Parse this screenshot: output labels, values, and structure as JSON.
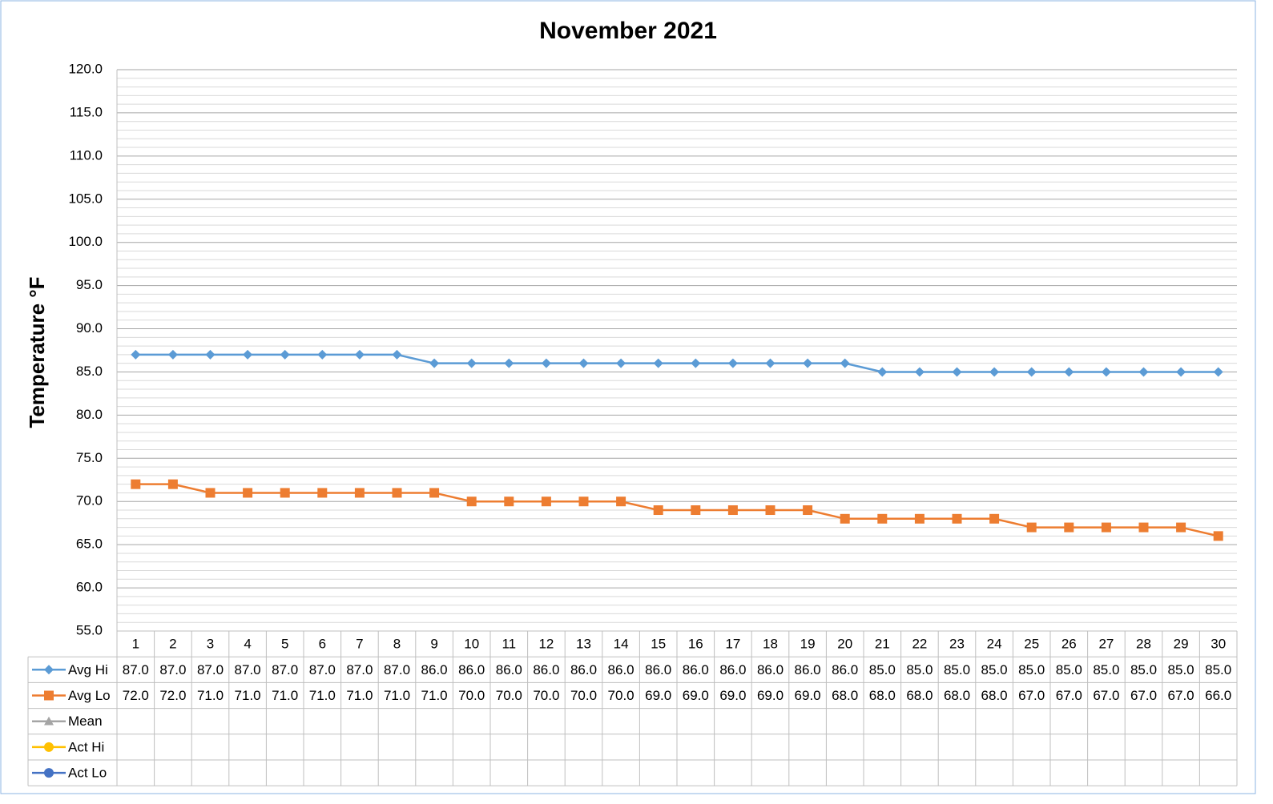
{
  "chart_data": {
    "type": "line",
    "title": "November 2021",
    "y_label": "Temperature °F",
    "categories": [
      "1",
      "2",
      "3",
      "4",
      "5",
      "6",
      "7",
      "8",
      "9",
      "10",
      "11",
      "12",
      "13",
      "14",
      "15",
      "16",
      "17",
      "18",
      "19",
      "20",
      "21",
      "22",
      "23",
      "24",
      "25",
      "26",
      "27",
      "28",
      "29",
      "30"
    ],
    "series": [
      {
        "name": "Avg Hi",
        "color": "#5b9bd5",
        "marker": "diamond",
        "values": [
          87,
          87,
          87,
          87,
          87,
          87,
          87,
          87,
          86,
          86,
          86,
          86,
          86,
          86,
          86,
          86,
          86,
          86,
          86,
          86,
          85,
          85,
          85,
          85,
          85,
          85,
          85,
          85,
          85,
          85
        ],
        "value_labels": [
          "87.0",
          "87.0",
          "87.0",
          "87.0",
          "87.0",
          "87.0",
          "87.0",
          "87.0",
          "86.0",
          "86.0",
          "86.0",
          "86.0",
          "86.0",
          "86.0",
          "86.0",
          "86.0",
          "86.0",
          "86.0",
          "86.0",
          "86.0",
          "85.0",
          "85.0",
          "85.0",
          "85.0",
          "85.0",
          "85.0",
          "85.0",
          "85.0",
          "85.0",
          "85.0"
        ]
      },
      {
        "name": "Avg Lo",
        "color": "#ed7d31",
        "marker": "square",
        "values": [
          72,
          72,
          71,
          71,
          71,
          71,
          71,
          71,
          71,
          70,
          70,
          70,
          70,
          70,
          69,
          69,
          69,
          69,
          69,
          68,
          68,
          68,
          68,
          68,
          67,
          67,
          67,
          67,
          67,
          66
        ],
        "value_labels": [
          "72.0",
          "72.0",
          "71.0",
          "71.0",
          "71.0",
          "71.0",
          "71.0",
          "71.0",
          "71.0",
          "70.0",
          "70.0",
          "70.0",
          "70.0",
          "70.0",
          "69.0",
          "69.0",
          "69.0",
          "69.0",
          "69.0",
          "68.0",
          "68.0",
          "68.0",
          "68.0",
          "68.0",
          "67.0",
          "67.0",
          "67.0",
          "67.0",
          "67.0",
          "66.0"
        ]
      },
      {
        "name": "Mean",
        "color": "#a5a5a5",
        "marker": "triangle",
        "values": [
          null,
          null,
          null,
          null,
          null,
          null,
          null,
          null,
          null,
          null,
          null,
          null,
          null,
          null,
          null,
          null,
          null,
          null,
          null,
          null,
          null,
          null,
          null,
          null,
          null,
          null,
          null,
          null,
          null,
          null
        ]
      },
      {
        "name": "Act Hi",
        "color": "#ffc000",
        "marker": "circle",
        "values": [
          null,
          null,
          null,
          null,
          null,
          null,
          null,
          null,
          null,
          null,
          null,
          null,
          null,
          null,
          null,
          null,
          null,
          null,
          null,
          null,
          null,
          null,
          null,
          null,
          null,
          null,
          null,
          null,
          null,
          null
        ]
      },
      {
        "name": "Act Lo",
        "color": "#4472c4",
        "marker": "circle",
        "values": [
          null,
          null,
          null,
          null,
          null,
          null,
          null,
          null,
          null,
          null,
          null,
          null,
          null,
          null,
          null,
          null,
          null,
          null,
          null,
          null,
          null,
          null,
          null,
          null,
          null,
          null,
          null,
          null,
          null,
          null
        ]
      }
    ],
    "ylim": [
      55,
      120
    ],
    "yticks": [
      {
        "value": 55,
        "label": "55.0"
      },
      {
        "value": 60,
        "label": "60.0"
      },
      {
        "value": 65,
        "label": "65.0"
      },
      {
        "value": 70,
        "label": "70.0"
      },
      {
        "value": 75,
        "label": "75.0"
      },
      {
        "value": 80,
        "label": "80.0"
      },
      {
        "value": 85,
        "label": "85.0"
      },
      {
        "value": 90,
        "label": "90.0"
      },
      {
        "value": 95,
        "label": "95.0"
      },
      {
        "value": 100,
        "label": "100.0"
      },
      {
        "value": 105,
        "label": "105.0"
      },
      {
        "value": 110,
        "label": "110.0"
      },
      {
        "value": 115,
        "label": "115.0"
      },
      {
        "value": 120,
        "label": "120.0"
      }
    ],
    "grid": true
  }
}
